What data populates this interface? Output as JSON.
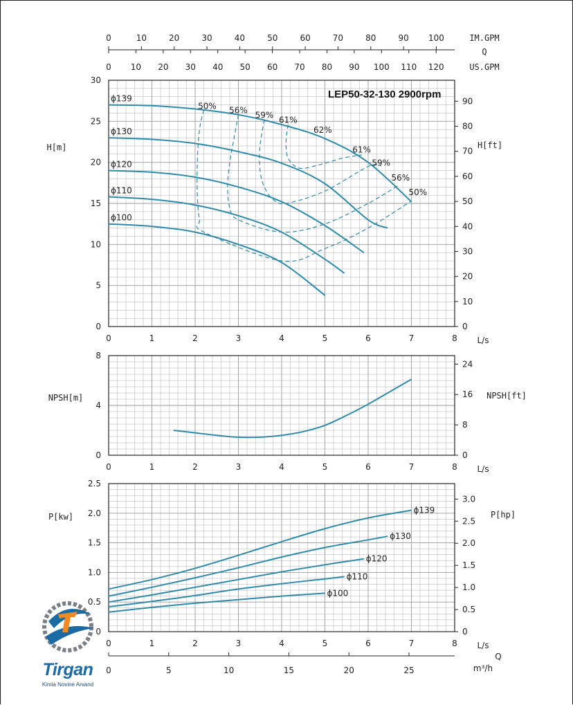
{
  "chart_data": [
    {
      "type": "line",
      "title": "LEP50-32-130 2900rpm",
      "xlabel": "L/s",
      "ylabel": "H[m]",
      "ylabel_right": "H[ft]",
      "xlim": [
        0,
        8
      ],
      "ylim": [
        0,
        30
      ],
      "ylim_right": [
        0,
        98.4
      ],
      "x_ticks": [
        "0",
        "1",
        "2",
        "3",
        "4",
        "5",
        "6",
        "7",
        "8"
      ],
      "y_ticks": [
        "0",
        "5",
        "10",
        "15",
        "20",
        "25",
        "30"
      ],
      "y_ticks_right": [
        "0",
        "10",
        "20",
        "30",
        "40",
        "50",
        "60",
        "70",
        "80",
        "90"
      ],
      "top_axes": [
        {
          "label": "IM.GPM",
          "max": 105.6,
          "ticks": [
            "0",
            "10",
            "20",
            "30",
            "40",
            "50",
            "60",
            "70",
            "80",
            "90",
            "100"
          ]
        },
        {
          "label": "Q",
          "max": 0,
          "ticks": []
        },
        {
          "label": "US.GPM",
          "max": 126.8,
          "ticks": [
            "0",
            "10",
            "20",
            "30",
            "40",
            "50",
            "60",
            "70",
            "80",
            "90",
            "100",
            "110",
            "120"
          ]
        }
      ],
      "grid": true,
      "series": [
        {
          "name": "ϕ139",
          "x": [
            0,
            1,
            2,
            3,
            4,
            5,
            6,
            7
          ],
          "y": [
            27.0,
            26.9,
            26.5,
            25.8,
            24.6,
            22.9,
            20.0,
            15.2
          ]
        },
        {
          "name": "ϕ130",
          "x": [
            0,
            1,
            2,
            3,
            4,
            5,
            6,
            6.45
          ],
          "y": [
            23.0,
            22.8,
            22.3,
            21.3,
            19.9,
            17.4,
            13.0,
            12.0
          ]
        },
        {
          "name": "ϕ120",
          "x": [
            0,
            1,
            2,
            3,
            4,
            5,
            5.9
          ],
          "y": [
            19.0,
            18.8,
            18.2,
            17.0,
            15.2,
            12.3,
            9.0
          ]
        },
        {
          "name": "ϕ110",
          "x": [
            0,
            1,
            2,
            3,
            4,
            5,
            5.45
          ],
          "y": [
            15.8,
            15.5,
            14.8,
            13.5,
            11.5,
            8.2,
            6.5
          ]
        },
        {
          "name": "ϕ100",
          "x": [
            0,
            1,
            2,
            3,
            4,
            5
          ],
          "y": [
            12.5,
            12.2,
            11.5,
            10.0,
            7.8,
            3.8
          ]
        }
      ],
      "efficiency_labels": [
        {
          "label": "50%",
          "x": 2.28,
          "y": 26.5
        },
        {
          "label": "56%",
          "x": 3.0,
          "y": 26.0
        },
        {
          "label": "59%",
          "x": 3.6,
          "y": 25.4
        },
        {
          "label": "61%",
          "x": 4.15,
          "y": 24.8
        },
        {
          "label": "62%",
          "x": 4.95,
          "y": 23.6
        },
        {
          "label": "61%",
          "x": 5.85,
          "y": 21.2
        },
        {
          "label": "59%",
          "x": 6.3,
          "y": 19.6
        },
        {
          "label": "56%",
          "x": 6.75,
          "y": 17.8
        },
        {
          "label": "50%",
          "x": 7.15,
          "y": 16.0
        }
      ],
      "efficiency_curves": [
        {
          "name": "50%",
          "x": [
            2.2,
            2.1,
            2.05,
            2.05,
            2.1,
            2.2,
            4.0,
            5.0,
            6.0,
            7.0
          ],
          "y": [
            26.4,
            24,
            20,
            16,
            13,
            11.5,
            8.0,
            9.5,
            12,
            15.3
          ]
        },
        {
          "name": "56%",
          "x": [
            3.0,
            2.9,
            2.8,
            2.75,
            2.8,
            3.0,
            4.0,
            5.0,
            6.0,
            6.7
          ],
          "y": [
            25.8,
            23,
            20,
            17,
            14.5,
            13,
            11.5,
            12.5,
            15,
            17.2
          ]
        },
        {
          "name": "59%",
          "x": [
            3.6,
            3.5,
            3.5,
            3.6,
            3.8,
            4.1,
            5.0,
            6.0,
            6.3
          ],
          "y": [
            25.2,
            22,
            19,
            17,
            15.5,
            15,
            16.5,
            19.5,
            19.6
          ]
        },
        {
          "name": "61%",
          "x": [
            4.15,
            4.1,
            4.15,
            4.4,
            4.8,
            5.4,
            5.85
          ],
          "y": [
            24.6,
            22.5,
            20.5,
            19.3,
            19.6,
            20.5,
            20.9
          ]
        }
      ]
    },
    {
      "type": "line",
      "title": "",
      "xlabel": "L/s",
      "ylabel": "NPSH[m]",
      "ylabel_right": "NPSH[ft]",
      "xlim": [
        0,
        8
      ],
      "ylim": [
        0,
        8
      ],
      "ylim_right": [
        0,
        26.25
      ],
      "x_ticks": [
        "0",
        "1",
        "2",
        "3",
        "4",
        "5",
        "6",
        "7",
        "8"
      ],
      "y_ticks": [
        "0",
        "4",
        "8"
      ],
      "y_ticks_right": [
        "0",
        "8",
        "16",
        "24"
      ],
      "grid": true,
      "series": [
        {
          "name": "",
          "x": [
            1.5,
            2,
            2.5,
            3,
            3.5,
            4,
            4.5,
            5,
            5.5,
            6,
            6.5,
            7
          ],
          "y": [
            2.0,
            1.8,
            1.6,
            1.45,
            1.45,
            1.6,
            1.9,
            2.4,
            3.2,
            4.1,
            5.1,
            6.1
          ]
        }
      ]
    },
    {
      "type": "line",
      "title": "",
      "xlabel": "L/s",
      "ylabel": "P[kw]",
      "ylabel_right": "P[hp]",
      "xlim": [
        0,
        8
      ],
      "ylim": [
        0,
        2.5
      ],
      "ylim_right": [
        0,
        3.35
      ],
      "x_ticks": [
        "0",
        "1",
        "2",
        "3",
        "4",
        "5",
        "6",
        "7",
        "8"
      ],
      "y_ticks": [
        "0",
        "0.5",
        "1.0",
        "1.5",
        "2.0",
        "2.5"
      ],
      "y_ticks_right": [
        "0",
        "0.5",
        "1.0",
        "1.5",
        "2.0",
        "2.5",
        "3.0"
      ],
      "bottom_axis": {
        "label": "m³/h",
        "sublabel": "Q",
        "max": 28.8,
        "ticks": [
          "0",
          "5",
          "10",
          "15",
          "20",
          "25"
        ]
      },
      "grid": true,
      "series": [
        {
          "name": "ϕ139",
          "x": [
            0,
            1,
            2,
            3,
            4,
            5,
            6,
            7
          ],
          "y": [
            0.72,
            0.88,
            1.07,
            1.29,
            1.52,
            1.74,
            1.92,
            2.05
          ]
        },
        {
          "name": "ϕ130",
          "x": [
            0,
            1,
            2,
            3,
            4,
            5,
            6,
            6.45
          ],
          "y": [
            0.6,
            0.75,
            0.91,
            1.08,
            1.26,
            1.42,
            1.55,
            1.61
          ]
        },
        {
          "name": "ϕ120",
          "x": [
            0,
            1,
            2,
            3,
            4,
            5,
            5.9
          ],
          "y": [
            0.5,
            0.62,
            0.75,
            0.88,
            1.01,
            1.13,
            1.23
          ]
        },
        {
          "name": "ϕ110",
          "x": [
            0,
            1,
            2,
            3,
            4,
            5,
            5.45
          ],
          "y": [
            0.42,
            0.51,
            0.61,
            0.72,
            0.81,
            0.89,
            0.93
          ]
        },
        {
          "name": "ϕ100",
          "x": [
            0,
            1,
            2,
            3,
            4,
            5
          ],
          "y": [
            0.33,
            0.41,
            0.48,
            0.54,
            0.6,
            0.65
          ]
        }
      ]
    }
  ],
  "colors": {
    "curve": "#2e8aa8",
    "grid": "#999999",
    "axis": "#222222",
    "logo_blue": "#1a6aa3",
    "logo_orange": "#f08a24",
    "logo_gray": "#7a7f86"
  },
  "logo": {
    "name": "Tirgan",
    "subtitle": "Kimia Novine Arvand"
  }
}
